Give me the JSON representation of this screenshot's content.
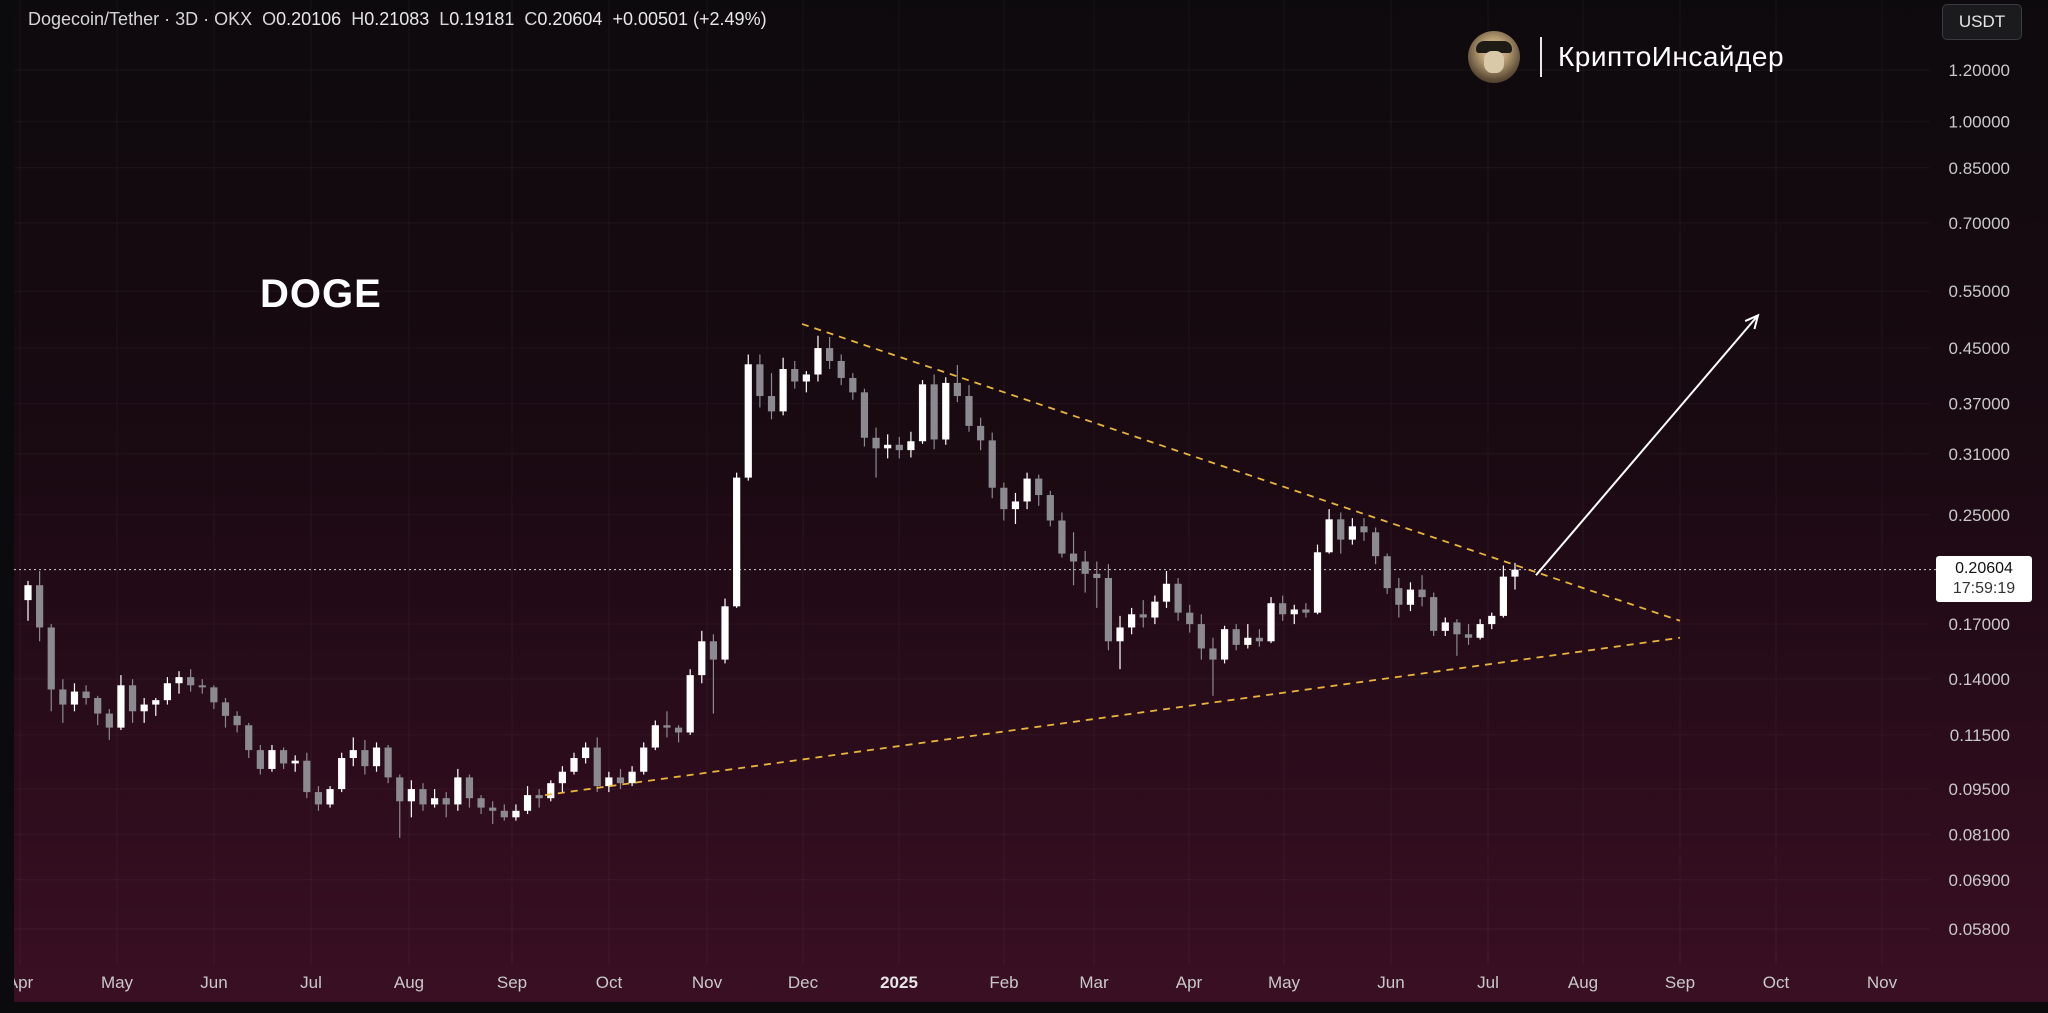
{
  "header": {
    "symbol": "Dogecoin/Tether · 3D · OKX",
    "open_label": "O",
    "open": "0.20106",
    "high_label": "H",
    "high": "0.21083",
    "low_label": "L",
    "low": "0.19181",
    "close_label": "C",
    "close": "0.20604",
    "change": "+0.00501 (+2.49%)"
  },
  "currency": "USDT",
  "brand": {
    "name": "КриптоИнсайдер"
  },
  "price_tag": {
    "value": "0.20604",
    "countdown": "17:59:19"
  },
  "colors": {
    "candle_up": "#ffffff",
    "candle_down": "#8a8a90",
    "trendline": "#e8b53c",
    "arrow": "#ffffff",
    "price_line": "#cfcfcf",
    "background_top": "#0d0a0d",
    "background_bottom": "#3a0f24"
  },
  "chart_data": {
    "type": "candlestick",
    "title": "DOGE",
    "xlabel": "",
    "ylabel": "",
    "y_scale": "log",
    "ylim": [
      0.052,
      1.33
    ],
    "y_ticks": [
      "1.20000",
      "1.00000",
      "0.85000",
      "0.70000",
      "0.55000",
      "0.45000",
      "0.37000",
      "0.31000",
      "0.25000",
      "0.17000",
      "0.14000",
      "0.11500",
      "0.09500",
      "0.08100",
      "0.06900",
      "0.05800"
    ],
    "x_ticks": [
      "Apr",
      "May",
      "Jun",
      "Jul",
      "Aug",
      "Sep",
      "Oct",
      "Nov",
      "Dec",
      "2025",
      "Feb",
      "Mar",
      "Apr",
      "May",
      "Jun",
      "Jul",
      "Aug",
      "Sep",
      "Oct",
      "Nov"
    ],
    "x_tick_bold": "2025",
    "last_price": 0.20604,
    "grid": true,
    "candles": [
      [
        0.185,
        0.198,
        0.172,
        0.195
      ],
      [
        0.195,
        0.205,
        0.16,
        0.168
      ],
      [
        0.168,
        0.17,
        0.125,
        0.135
      ],
      [
        0.135,
        0.14,
        0.12,
        0.128
      ],
      [
        0.128,
        0.138,
        0.125,
        0.134
      ],
      [
        0.134,
        0.137,
        0.128,
        0.131
      ],
      [
        0.131,
        0.132,
        0.119,
        0.124
      ],
      [
        0.124,
        0.126,
        0.113,
        0.118
      ],
      [
        0.118,
        0.142,
        0.117,
        0.137
      ],
      [
        0.137,
        0.14,
        0.12,
        0.125
      ],
      [
        0.125,
        0.131,
        0.12,
        0.128
      ],
      [
        0.128,
        0.131,
        0.123,
        0.13
      ],
      [
        0.13,
        0.141,
        0.128,
        0.138
      ],
      [
        0.138,
        0.144,
        0.133,
        0.141
      ],
      [
        0.141,
        0.145,
        0.134,
        0.137
      ],
      [
        0.137,
        0.14,
        0.133,
        0.136
      ],
      [
        0.136,
        0.137,
        0.126,
        0.129
      ],
      [
        0.129,
        0.131,
        0.118,
        0.123
      ],
      [
        0.123,
        0.125,
        0.116,
        0.119
      ],
      [
        0.119,
        0.12,
        0.106,
        0.109
      ],
      [
        0.109,
        0.111,
        0.1,
        0.102
      ],
      [
        0.102,
        0.111,
        0.101,
        0.109
      ],
      [
        0.109,
        0.11,
        0.102,
        0.104
      ],
      [
        0.104,
        0.107,
        0.101,
        0.105
      ],
      [
        0.105,
        0.108,
        0.092,
        0.094
      ],
      [
        0.094,
        0.096,
        0.088,
        0.09
      ],
      [
        0.09,
        0.096,
        0.089,
        0.095
      ],
      [
        0.095,
        0.108,
        0.094,
        0.106
      ],
      [
        0.106,
        0.114,
        0.103,
        0.109
      ],
      [
        0.109,
        0.113,
        0.1,
        0.103
      ],
      [
        0.103,
        0.112,
        0.101,
        0.11
      ],
      [
        0.11,
        0.111,
        0.097,
        0.099
      ],
      [
        0.099,
        0.1,
        0.08,
        0.091
      ],
      [
        0.091,
        0.098,
        0.086,
        0.095
      ],
      [
        0.095,
        0.097,
        0.088,
        0.09
      ],
      [
        0.09,
        0.095,
        0.089,
        0.092
      ],
      [
        0.092,
        0.094,
        0.086,
        0.09
      ],
      [
        0.09,
        0.102,
        0.088,
        0.099
      ],
      [
        0.099,
        0.1,
        0.089,
        0.092
      ],
      [
        0.092,
        0.093,
        0.087,
        0.089
      ],
      [
        0.089,
        0.091,
        0.084,
        0.088
      ],
      [
        0.088,
        0.09,
        0.085,
        0.086
      ],
      [
        0.086,
        0.09,
        0.085,
        0.088
      ],
      [
        0.088,
        0.096,
        0.087,
        0.093
      ],
      [
        0.093,
        0.095,
        0.089,
        0.092
      ],
      [
        0.092,
        0.098,
        0.091,
        0.097
      ],
      [
        0.097,
        0.103,
        0.094,
        0.101
      ],
      [
        0.101,
        0.108,
        0.1,
        0.106
      ],
      [
        0.106,
        0.112,
        0.104,
        0.11
      ],
      [
        0.11,
        0.114,
        0.094,
        0.096
      ],
      [
        0.096,
        0.101,
        0.094,
        0.099
      ],
      [
        0.099,
        0.102,
        0.095,
        0.097
      ],
      [
        0.097,
        0.103,
        0.096,
        0.101
      ],
      [
        0.101,
        0.112,
        0.1,
        0.11
      ],
      [
        0.11,
        0.121,
        0.109,
        0.119
      ],
      [
        0.119,
        0.125,
        0.114,
        0.118
      ],
      [
        0.118,
        0.119,
        0.112,
        0.116
      ],
      [
        0.116,
        0.145,
        0.115,
        0.142
      ],
      [
        0.142,
        0.166,
        0.138,
        0.16
      ],
      [
        0.16,
        0.164,
        0.124,
        0.15
      ],
      [
        0.15,
        0.186,
        0.148,
        0.181
      ],
      [
        0.181,
        0.29,
        0.18,
        0.285
      ],
      [
        0.285,
        0.44,
        0.282,
        0.425
      ],
      [
        0.425,
        0.44,
        0.365,
        0.38
      ],
      [
        0.38,
        0.412,
        0.35,
        0.36
      ],
      [
        0.36,
        0.435,
        0.355,
        0.418
      ],
      [
        0.418,
        0.43,
        0.39,
        0.4
      ],
      [
        0.4,
        0.415,
        0.385,
        0.41
      ],
      [
        0.41,
        0.47,
        0.4,
        0.45
      ],
      [
        0.45,
        0.468,
        0.418,
        0.43
      ],
      [
        0.43,
        0.44,
        0.395,
        0.405
      ],
      [
        0.405,
        0.412,
        0.375,
        0.385
      ],
      [
        0.385,
        0.39,
        0.318,
        0.328
      ],
      [
        0.328,
        0.34,
        0.285,
        0.316
      ],
      [
        0.316,
        0.332,
        0.305,
        0.32
      ],
      [
        0.32,
        0.329,
        0.305,
        0.314
      ],
      [
        0.314,
        0.335,
        0.306,
        0.324
      ],
      [
        0.324,
        0.402,
        0.321,
        0.396
      ],
      [
        0.396,
        0.41,
        0.315,
        0.326
      ],
      [
        0.326,
        0.406,
        0.32,
        0.398
      ],
      [
        0.398,
        0.424,
        0.372,
        0.38
      ],
      [
        0.38,
        0.395,
        0.335,
        0.342
      ],
      [
        0.342,
        0.352,
        0.314,
        0.325
      ],
      [
        0.325,
        0.334,
        0.265,
        0.275
      ],
      [
        0.275,
        0.28,
        0.245,
        0.255
      ],
      [
        0.255,
        0.27,
        0.242,
        0.262
      ],
      [
        0.262,
        0.29,
        0.255,
        0.284
      ],
      [
        0.284,
        0.288,
        0.258,
        0.268
      ],
      [
        0.268,
        0.272,
        0.24,
        0.245
      ],
      [
        0.245,
        0.252,
        0.215,
        0.218
      ],
      [
        0.218,
        0.235,
        0.195,
        0.212
      ],
      [
        0.212,
        0.22,
        0.19,
        0.203
      ],
      [
        0.203,
        0.212,
        0.18,
        0.2
      ],
      [
        0.2,
        0.21,
        0.155,
        0.16
      ],
      [
        0.16,
        0.175,
        0.145,
        0.168
      ],
      [
        0.168,
        0.18,
        0.164,
        0.176
      ],
      [
        0.176,
        0.185,
        0.168,
        0.174
      ],
      [
        0.174,
        0.188,
        0.17,
        0.184
      ],
      [
        0.184,
        0.205,
        0.18,
        0.196
      ],
      [
        0.196,
        0.2,
        0.172,
        0.177
      ],
      [
        0.177,
        0.182,
        0.165,
        0.17
      ],
      [
        0.17,
        0.176,
        0.15,
        0.156
      ],
      [
        0.156,
        0.162,
        0.132,
        0.15
      ],
      [
        0.15,
        0.169,
        0.148,
        0.167
      ],
      [
        0.167,
        0.17,
        0.155,
        0.158
      ],
      [
        0.158,
        0.17,
        0.156,
        0.162
      ],
      [
        0.162,
        0.167,
        0.157,
        0.16
      ],
      [
        0.16,
        0.187,
        0.159,
        0.183
      ],
      [
        0.183,
        0.188,
        0.172,
        0.176
      ],
      [
        0.176,
        0.182,
        0.17,
        0.179
      ],
      [
        0.179,
        0.183,
        0.174,
        0.177
      ],
      [
        0.177,
        0.225,
        0.176,
        0.219
      ],
      [
        0.219,
        0.255,
        0.218,
        0.246
      ],
      [
        0.246,
        0.252,
        0.218,
        0.229
      ],
      [
        0.229,
        0.247,
        0.225,
        0.24
      ],
      [
        0.24,
        0.247,
        0.228,
        0.235
      ],
      [
        0.235,
        0.239,
        0.21,
        0.216
      ],
      [
        0.216,
        0.218,
        0.189,
        0.193
      ],
      [
        0.193,
        0.2,
        0.174,
        0.182
      ],
      [
        0.182,
        0.197,
        0.178,
        0.192
      ],
      [
        0.192,
        0.202,
        0.181,
        0.187
      ],
      [
        0.187,
        0.19,
        0.163,
        0.166
      ],
      [
        0.166,
        0.174,
        0.163,
        0.171
      ],
      [
        0.171,
        0.173,
        0.152,
        0.164
      ],
      [
        0.164,
        0.17,
        0.158,
        0.162
      ],
      [
        0.162,
        0.173,
        0.161,
        0.17
      ],
      [
        0.17,
        0.177,
        0.167,
        0.175
      ],
      [
        0.175,
        0.209,
        0.174,
        0.201
      ],
      [
        0.201,
        0.211,
        0.192,
        0.206
      ]
    ]
  }
}
